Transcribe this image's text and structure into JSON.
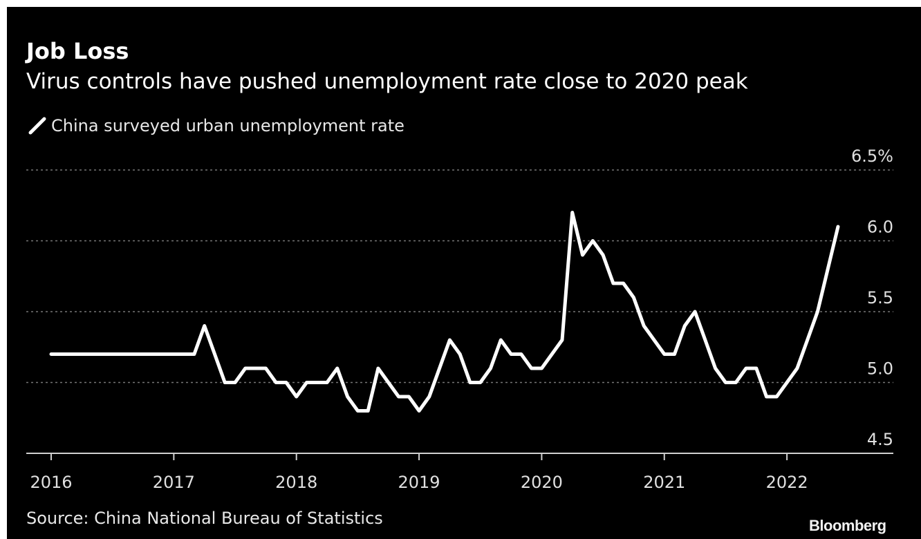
{
  "colors": {
    "background": "#000000",
    "line": "#ffffff",
    "grid": "#777777",
    "text": "#e8e8e8"
  },
  "header": {
    "title": "Job Loss",
    "subtitle": "Virus controls have pushed unemployment rate close to 2020 peak"
  },
  "footer": {
    "source": "Source: China National Bureau of Statistics",
    "brand": "Bloomberg"
  },
  "chart_data": {
    "type": "line",
    "title": "Job Loss",
    "subtitle": "Virus controls have pushed unemployment rate close to 2020 peak",
    "xlabel": "",
    "ylabel": "",
    "ylim": [
      4.5,
      6.5
    ],
    "y_ticks": [
      {
        "value": 6.5,
        "label": "6.5%"
      },
      {
        "value": 6.0,
        "label": "6.0"
      },
      {
        "value": 5.5,
        "label": "5.5"
      },
      {
        "value": 5.0,
        "label": "5.0"
      },
      {
        "value": 4.5,
        "label": "4.5"
      }
    ],
    "x_ticks": [
      {
        "value": "2016-01",
        "label": "2016"
      },
      {
        "value": "2017-01",
        "label": "2017"
      },
      {
        "value": "2018-01",
        "label": "2018"
      },
      {
        "value": "2019-01",
        "label": "2019"
      },
      {
        "value": "2020-01",
        "label": "2020"
      },
      {
        "value": "2021-01",
        "label": "2021"
      },
      {
        "value": "2022-01",
        "label": "2022"
      }
    ],
    "grid": true,
    "legend_position": "top-left",
    "series": [
      {
        "name": "China surveyed urban unemployment rate",
        "points": [
          [
            "2016-01",
            5.2
          ],
          [
            "2017-03",
            5.2
          ],
          [
            "2017-04",
            5.4
          ],
          [
            "2017-05",
            5.2
          ],
          [
            "2017-06",
            5.0
          ],
          [
            "2017-07",
            5.0
          ],
          [
            "2017-08",
            5.1
          ],
          [
            "2017-09",
            5.1
          ],
          [
            "2017-10",
            5.1
          ],
          [
            "2017-11",
            5.0
          ],
          [
            "2017-12",
            5.0
          ],
          [
            "2018-01",
            4.9
          ],
          [
            "2018-02",
            5.0
          ],
          [
            "2018-03",
            5.0
          ],
          [
            "2018-04",
            5.0
          ],
          [
            "2018-05",
            5.1
          ],
          [
            "2018-06",
            4.9
          ],
          [
            "2018-07",
            4.8
          ],
          [
            "2018-08",
            4.8
          ],
          [
            "2018-09",
            5.1
          ],
          [
            "2018-10",
            5.0
          ],
          [
            "2018-11",
            4.9
          ],
          [
            "2018-12",
            4.9
          ],
          [
            "2019-01",
            4.8
          ],
          [
            "2019-02",
            4.9
          ],
          [
            "2019-03",
            5.1
          ],
          [
            "2019-04",
            5.3
          ],
          [
            "2019-05",
            5.2
          ],
          [
            "2019-06",
            5.0
          ],
          [
            "2019-07",
            5.0
          ],
          [
            "2019-08",
            5.1
          ],
          [
            "2019-09",
            5.3
          ],
          [
            "2019-10",
            5.2
          ],
          [
            "2019-11",
            5.2
          ],
          [
            "2019-12",
            5.1
          ],
          [
            "2020-01",
            5.1
          ],
          [
            "2020-02",
            5.2
          ],
          [
            "2020-03",
            5.3
          ],
          [
            "2020-04",
            6.2
          ],
          [
            "2020-05",
            5.9
          ],
          [
            "2020-06",
            6.0
          ],
          [
            "2020-07",
            5.9
          ],
          [
            "2020-08",
            5.7
          ],
          [
            "2020-09",
            5.7
          ],
          [
            "2020-10",
            5.6
          ],
          [
            "2020-11",
            5.4
          ],
          [
            "2020-12",
            5.3
          ],
          [
            "2021-01",
            5.2
          ],
          [
            "2021-02",
            5.2
          ],
          [
            "2021-03",
            5.4
          ],
          [
            "2021-04",
            5.5
          ],
          [
            "2021-05",
            5.3
          ],
          [
            "2021-06",
            5.1
          ],
          [
            "2021-07",
            5.0
          ],
          [
            "2021-08",
            5.0
          ],
          [
            "2021-09",
            5.1
          ],
          [
            "2021-10",
            5.1
          ],
          [
            "2021-11",
            4.9
          ],
          [
            "2021-12",
            4.9
          ],
          [
            "2022-01",
            5.0
          ],
          [
            "2022-02",
            5.1
          ],
          [
            "2022-03",
            5.3
          ],
          [
            "2022-04",
            5.5
          ],
          [
            "2022-05",
            5.8
          ],
          [
            "2022-06",
            6.1
          ]
        ]
      }
    ]
  }
}
